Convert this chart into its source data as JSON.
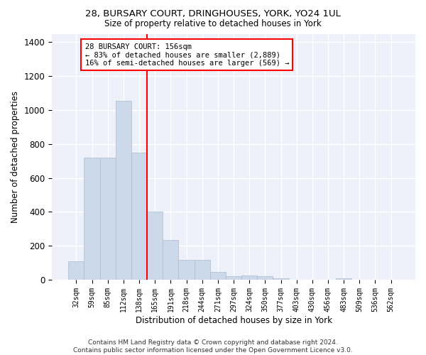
{
  "title1": "28, BURSARY COURT, DRINGHOUSES, YORK, YO24 1UL",
  "title2": "Size of property relative to detached houses in York",
  "xlabel": "Distribution of detached houses by size in York",
  "ylabel": "Number of detached properties",
  "categories": [
    "32sqm",
    "59sqm",
    "85sqm",
    "112sqm",
    "138sqm",
    "165sqm",
    "191sqm",
    "218sqm",
    "244sqm",
    "271sqm",
    "297sqm",
    "324sqm",
    "350sqm",
    "377sqm",
    "403sqm",
    "430sqm",
    "456sqm",
    "483sqm",
    "509sqm",
    "536sqm",
    "562sqm"
  ],
  "values": [
    107,
    720,
    720,
    1055,
    750,
    400,
    235,
    115,
    115,
    45,
    20,
    25,
    20,
    10,
    0,
    0,
    0,
    10,
    0,
    0,
    0
  ],
  "bar_color": "#ccd9ea",
  "bar_edgecolor": "#aabbcc",
  "vline_color": "red",
  "annotation_text": "28 BURSARY COURT: 156sqm\n← 83% of detached houses are smaller (2,889)\n16% of semi-detached houses are larger (569) →",
  "annotation_box_edgecolor": "red",
  "background_color": "#eef1fa",
  "grid_color": "#ffffff",
  "footer": "Contains HM Land Registry data © Crown copyright and database right 2024.\nContains public sector information licensed under the Open Government Licence v3.0.",
  "ylim": [
    0,
    1450
  ],
  "yticks": [
    0,
    200,
    400,
    600,
    800,
    1000,
    1200,
    1400
  ]
}
